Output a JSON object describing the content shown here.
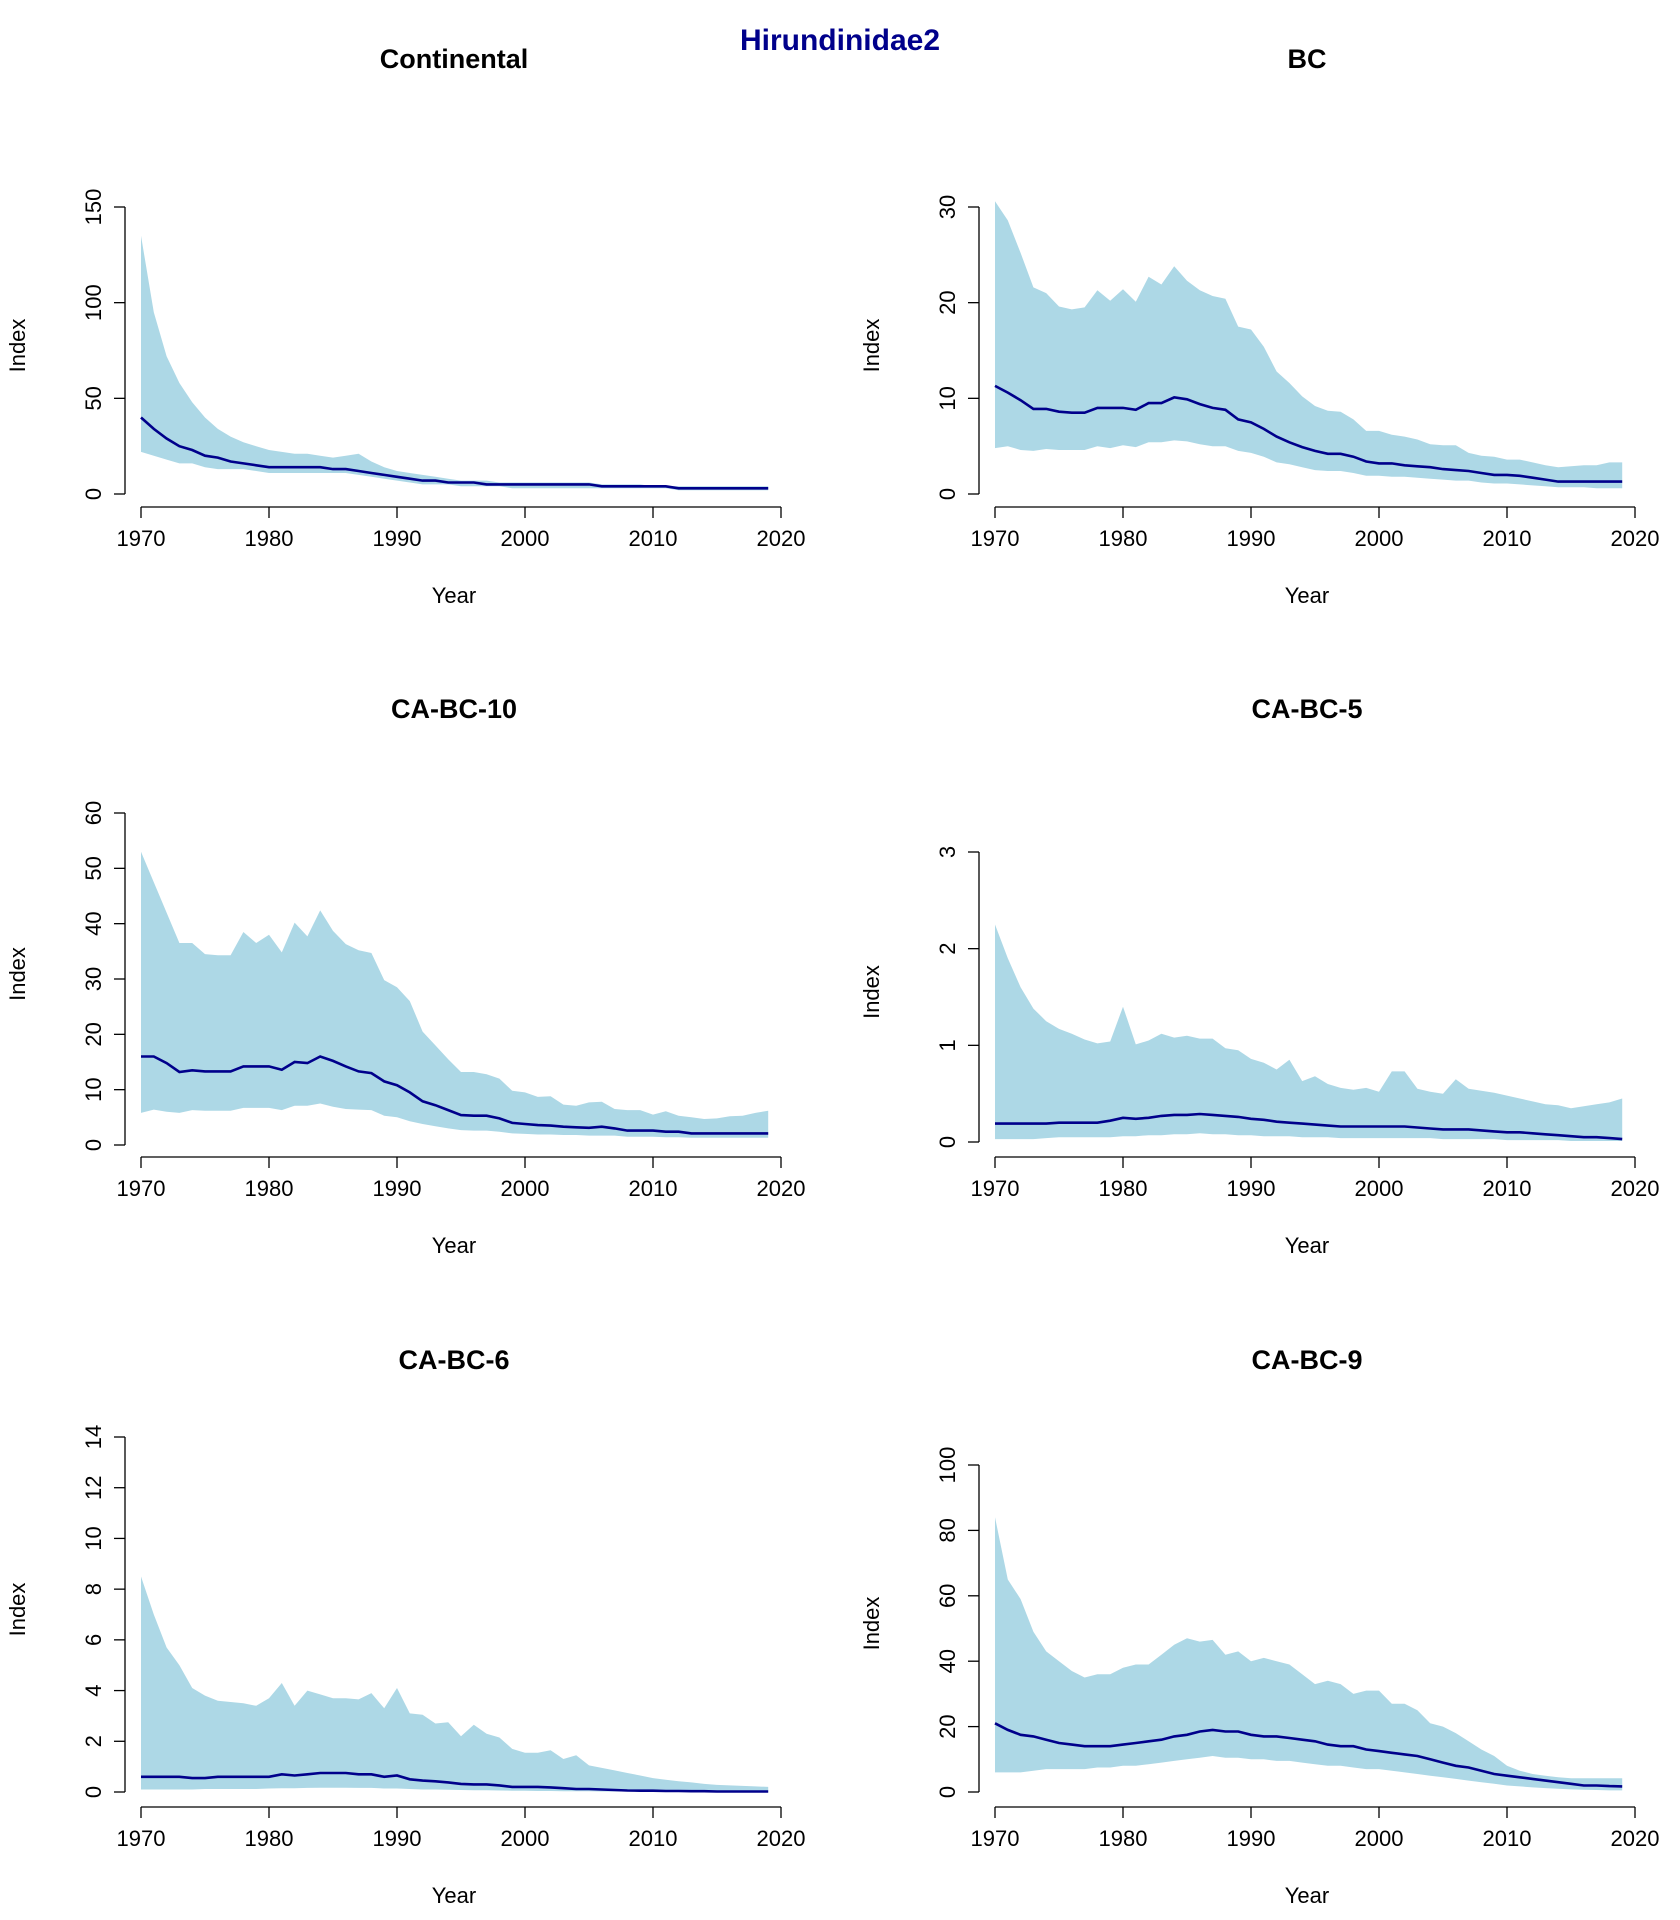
{
  "page_title": "Hirundinidae2",
  "colors": {
    "band": "#ADD8E6",
    "line": "#00008B",
    "title": "#00008B"
  },
  "chart_data": [
    {
      "type": "area",
      "title": "Continental",
      "xlabel": "Year",
      "ylabel": "Index",
      "xlim": [
        1970,
        2020
      ],
      "ylim": [
        0,
        150
      ],
      "xticks": [
        1970,
        1980,
        1990,
        2000,
        2010,
        2020
      ],
      "yticks": [
        0,
        50,
        100,
        150
      ],
      "x_start": 1970,
      "series": [
        {
          "role": "index",
          "values": [
            40,
            34,
            29,
            25,
            23,
            20,
            19,
            17,
            16,
            15,
            14,
            14,
            14,
            14,
            14,
            13,
            13,
            12,
            11,
            10,
            9,
            8,
            7,
            7,
            6,
            6,
            6,
            5,
            5,
            5,
            5,
            5,
            5,
            5,
            5,
            5,
            4,
            4,
            4,
            4,
            4,
            4,
            3,
            3,
            3,
            3,
            3,
            3,
            3,
            3
          ]
        },
        {
          "role": "lower",
          "values": [
            22,
            20,
            18,
            16,
            16,
            14,
            13,
            13,
            13,
            12,
            11,
            11,
            11,
            11,
            11,
            11,
            11,
            10,
            9,
            8,
            7,
            6,
            5,
            5,
            5,
            4,
            4,
            4,
            4,
            3,
            3,
            3,
            3,
            3,
            3,
            3,
            3,
            3,
            3,
            3,
            3,
            3,
            2,
            2,
            2,
            2,
            2,
            2,
            2,
            2
          ]
        },
        {
          "role": "upper",
          "values": [
            135,
            95,
            72,
            58,
            48,
            40,
            34,
            30,
            27,
            25,
            23,
            22,
            21,
            21,
            20,
            19,
            20,
            21,
            17,
            14,
            12,
            11,
            10,
            9,
            8,
            7,
            7,
            7,
            6,
            6,
            6,
            6,
            6,
            6,
            6,
            6,
            5,
            5,
            5,
            5,
            4,
            4,
            4,
            4,
            4,
            4,
            4,
            4,
            4,
            4
          ]
        }
      ]
    },
    {
      "type": "area",
      "title": "BC",
      "xlabel": "Year",
      "ylabel": "Index",
      "xlim": [
        1970,
        2020
      ],
      "ylim": [
        0,
        30
      ],
      "xticks": [
        1970,
        1980,
        1990,
        2000,
        2010,
        2020
      ],
      "yticks": [
        0,
        10,
        20,
        30
      ],
      "x_start": 1970,
      "series": [
        {
          "role": "index",
          "values": [
            11.3,
            10.6,
            9.8,
            8.9,
            8.9,
            8.6,
            8.5,
            8.5,
            9.0,
            9.0,
            9.0,
            8.8,
            9.5,
            9.5,
            10.1,
            9.9,
            9.4,
            9.0,
            8.8,
            7.8,
            7.5,
            6.8,
            6.0,
            5.4,
            4.9,
            4.5,
            4.2,
            4.2,
            3.9,
            3.4,
            3.2,
            3.2,
            3.0,
            2.9,
            2.8,
            2.6,
            2.5,
            2.4,
            2.2,
            2.0,
            2.0,
            1.9,
            1.7,
            1.5,
            1.3,
            1.3,
            1.3,
            1.3,
            1.3,
            1.3
          ]
        },
        {
          "role": "lower",
          "values": [
            4.8,
            5.0,
            4.6,
            4.5,
            4.7,
            4.6,
            4.6,
            4.6,
            5.0,
            4.8,
            5.1,
            4.9,
            5.4,
            5.4,
            5.6,
            5.5,
            5.2,
            5.0,
            5.0,
            4.5,
            4.3,
            3.9,
            3.3,
            3.1,
            2.8,
            2.5,
            2.4,
            2.4,
            2.2,
            1.9,
            1.9,
            1.8,
            1.8,
            1.7,
            1.6,
            1.5,
            1.4,
            1.4,
            1.2,
            1.1,
            1.1,
            1.0,
            0.9,
            0.8,
            0.7,
            0.7,
            0.7,
            0.6,
            0.6,
            0.6
          ]
        },
        {
          "role": "upper",
          "values": [
            30.6,
            28.6,
            25.2,
            21.6,
            21.0,
            19.6,
            19.3,
            19.5,
            21.3,
            20.2,
            21.4,
            20.1,
            22.7,
            21.9,
            23.8,
            22.3,
            21.3,
            20.7,
            20.4,
            17.5,
            17.2,
            15.4,
            12.8,
            11.6,
            10.2,
            9.2,
            8.7,
            8.6,
            7.8,
            6.6,
            6.6,
            6.2,
            6.0,
            5.7,
            5.2,
            5.1,
            5.1,
            4.3,
            4.0,
            3.9,
            3.6,
            3.6,
            3.3,
            3.0,
            2.8,
            2.9,
            3.0,
            3.0,
            3.3,
            3.3
          ]
        }
      ]
    },
    {
      "type": "area",
      "title": "CA-BC-10",
      "xlabel": "Year",
      "ylabel": "Index",
      "xlim": [
        1970,
        2020
      ],
      "ylim": [
        0,
        60
      ],
      "xticks": [
        1970,
        1980,
        1990,
        2000,
        2010,
        2020
      ],
      "yticks": [
        0,
        10,
        20,
        30,
        40,
        50,
        60
      ],
      "x_start": 1970,
      "series": [
        {
          "role": "index",
          "values": [
            16,
            16,
            14.8,
            13.2,
            13.5,
            13.3,
            13.3,
            13.3,
            14.2,
            14.2,
            14.2,
            13.6,
            15,
            14.8,
            16,
            15.2,
            14.2,
            13.3,
            13,
            11.5,
            10.8,
            9.5,
            7.9,
            7.2,
            6.3,
            5.4,
            5.3,
            5.3,
            4.8,
            4,
            3.8,
            3.6,
            3.5,
            3.3,
            3.2,
            3.1,
            3.3,
            3,
            2.6,
            2.6,
            2.6,
            2.4,
            2.4,
            2.1,
            2.1,
            2.1,
            2.1,
            2.1,
            2.1,
            2.1
          ]
        },
        {
          "role": "lower",
          "values": [
            5.8,
            6.4,
            6,
            5.8,
            6.3,
            6.2,
            6.2,
            6.2,
            6.7,
            6.7,
            6.7,
            6.3,
            7.1,
            7.1,
            7.5,
            6.9,
            6.5,
            6.4,
            6.3,
            5.3,
            5,
            4.3,
            3.8,
            3.4,
            3,
            2.7,
            2.6,
            2.6,
            2.4,
            2.1,
            2,
            1.9,
            1.9,
            1.8,
            1.8,
            1.7,
            1.7,
            1.7,
            1.5,
            1.5,
            1.5,
            1.4,
            1.4,
            1.3,
            1.3,
            1.3,
            1.3,
            1.3,
            1.3,
            1.3
          ]
        },
        {
          "role": "upper",
          "values": [
            53,
            47.5,
            42,
            36.5,
            36.5,
            34.5,
            34.3,
            34.3,
            38.5,
            36.5,
            38,
            34.8,
            40.2,
            37.7,
            42.4,
            38.7,
            36.3,
            35.2,
            34.7,
            29.8,
            28.5,
            26,
            20.5,
            18,
            15.5,
            13.2,
            13.2,
            12.8,
            12,
            9.8,
            9.5,
            8.7,
            8.8,
            7.3,
            7.1,
            7.7,
            7.8,
            6.5,
            6.3,
            6.3,
            5.5,
            6.1,
            5.3,
            5,
            4.7,
            4.8,
            5.2,
            5.3,
            5.8,
            6.2
          ]
        }
      ]
    },
    {
      "type": "area",
      "title": "CA-BC-5",
      "xlabel": "Year",
      "ylabel": "Index",
      "xlim": [
        1970,
        2020
      ],
      "ylim": [
        0,
        3
      ],
      "xticks": [
        1970,
        1980,
        1990,
        2000,
        2010,
        2020
      ],
      "yticks": [
        0,
        1,
        2,
        3
      ],
      "x_start": 1970,
      "series": [
        {
          "role": "index",
          "values": [
            0.19,
            0.19,
            0.19,
            0.19,
            0.19,
            0.2,
            0.2,
            0.2,
            0.2,
            0.22,
            0.25,
            0.24,
            0.25,
            0.27,
            0.28,
            0.28,
            0.29,
            0.28,
            0.27,
            0.26,
            0.24,
            0.23,
            0.21,
            0.2,
            0.19,
            0.18,
            0.17,
            0.16,
            0.16,
            0.16,
            0.16,
            0.16,
            0.16,
            0.15,
            0.14,
            0.13,
            0.13,
            0.13,
            0.12,
            0.11,
            0.1,
            0.1,
            0.09,
            0.08,
            0.07,
            0.06,
            0.05,
            0.05,
            0.04,
            0.03
          ]
        },
        {
          "role": "lower",
          "values": [
            0.03,
            0.03,
            0.03,
            0.03,
            0.04,
            0.05,
            0.05,
            0.05,
            0.05,
            0.05,
            0.06,
            0.06,
            0.07,
            0.07,
            0.08,
            0.08,
            0.09,
            0.08,
            0.08,
            0.07,
            0.07,
            0.06,
            0.06,
            0.06,
            0.05,
            0.05,
            0.05,
            0.04,
            0.04,
            0.04,
            0.04,
            0.04,
            0.04,
            0.04,
            0.04,
            0.03,
            0.03,
            0.03,
            0.03,
            0.03,
            0.02,
            0.02,
            0.02,
            0.02,
            0.02,
            0.01,
            0.01,
            0.01,
            0.01,
            0.01
          ]
        },
        {
          "role": "upper",
          "values": [
            2.25,
            1.9,
            1.6,
            1.38,
            1.25,
            1.17,
            1.12,
            1.06,
            1.02,
            1.04,
            1.4,
            1.01,
            1.05,
            1.12,
            1.08,
            1.1,
            1.07,
            1.07,
            0.97,
            0.95,
            0.86,
            0.82,
            0.75,
            0.85,
            0.63,
            0.68,
            0.6,
            0.56,
            0.54,
            0.56,
            0.52,
            0.73,
            0.73,
            0.55,
            0.52,
            0.5,
            0.65,
            0.55,
            0.53,
            0.51,
            0.48,
            0.45,
            0.42,
            0.39,
            0.38,
            0.35,
            0.37,
            0.39,
            0.41,
            0.45
          ]
        }
      ]
    },
    {
      "type": "area",
      "title": "CA-BC-6",
      "xlabel": "Year",
      "ylabel": "Index",
      "xlim": [
        1970,
        2020
      ],
      "ylim": [
        0,
        14
      ],
      "xticks": [
        1970,
        1980,
        1990,
        2000,
        2010,
        2020
      ],
      "yticks": [
        0,
        2,
        4,
        6,
        8,
        10,
        12,
        14
      ],
      "x_start": 1970,
      "series": [
        {
          "role": "index",
          "values": [
            0.6,
            0.6,
            0.6,
            0.6,
            0.55,
            0.55,
            0.6,
            0.6,
            0.6,
            0.6,
            0.6,
            0.7,
            0.65,
            0.7,
            0.75,
            0.75,
            0.75,
            0.7,
            0.7,
            0.6,
            0.65,
            0.5,
            0.45,
            0.42,
            0.38,
            0.32,
            0.3,
            0.3,
            0.26,
            0.2,
            0.2,
            0.2,
            0.18,
            0.15,
            0.12,
            0.12,
            0.1,
            0.08,
            0.06,
            0.05,
            0.05,
            0.04,
            0.04,
            0.03,
            0.03,
            0.02,
            0.02,
            0.02,
            0.02,
            0.02
          ]
        },
        {
          "role": "lower",
          "values": [
            0.1,
            0.1,
            0.1,
            0.1,
            0.1,
            0.12,
            0.12,
            0.12,
            0.12,
            0.12,
            0.14,
            0.15,
            0.15,
            0.16,
            0.17,
            0.17,
            0.17,
            0.16,
            0.16,
            0.14,
            0.14,
            0.12,
            0.1,
            0.1,
            0.09,
            0.08,
            0.07,
            0.07,
            0.06,
            0.05,
            0.05,
            0.04,
            0.04,
            0.03,
            0.03,
            0.03,
            0.02,
            0.02,
            0.02,
            0.01,
            0.01,
            0.01,
            0.01,
            0.01,
            0,
            0,
            0,
            0,
            0,
            0
          ]
        },
        {
          "role": "upper",
          "values": [
            8.5,
            7,
            5.7,
            5,
            4.1,
            3.8,
            3.6,
            3.55,
            3.5,
            3.4,
            3.7,
            4.3,
            3.4,
            4,
            3.85,
            3.7,
            3.7,
            3.65,
            3.9,
            3.3,
            4.1,
            3.1,
            3.05,
            2.7,
            2.75,
            2.2,
            2.65,
            2.3,
            2.15,
            1.7,
            1.55,
            1.55,
            1.65,
            1.3,
            1.45,
            1.05,
            0.95,
            0.85,
            0.75,
            0.65,
            0.55,
            0.48,
            0.42,
            0.38,
            0.32,
            0.28,
            0.26,
            0.24,
            0.22,
            0.2
          ]
        }
      ]
    },
    {
      "type": "area",
      "title": "CA-BC-9",
      "xlabel": "Year",
      "ylabel": "Index",
      "xlim": [
        1970,
        2020
      ],
      "ylim": [
        0,
        100
      ],
      "xticks": [
        1970,
        1980,
        1990,
        2000,
        2010,
        2020
      ],
      "yticks": [
        0,
        20,
        40,
        60,
        80,
        100
      ],
      "x_start": 1970,
      "series": [
        {
          "role": "index",
          "values": [
            21,
            19,
            17.5,
            17,
            16,
            15,
            14.5,
            14,
            14,
            14,
            14.5,
            15,
            15.5,
            16,
            17,
            17.5,
            18.5,
            19,
            18.5,
            18.5,
            17.5,
            17,
            17,
            16.5,
            16,
            15.5,
            14.5,
            14,
            14,
            13,
            12.5,
            12,
            11.5,
            11,
            10,
            9,
            8,
            7.5,
            6.5,
            5.5,
            5,
            4.5,
            4,
            3.5,
            3,
            2.5,
            2,
            2,
            1.8,
            1.7
          ]
        },
        {
          "role": "lower",
          "values": [
            6,
            6,
            6,
            6.5,
            7,
            7,
            7,
            7,
            7.5,
            7.5,
            8,
            8,
            8.5,
            9,
            9.5,
            10,
            10.5,
            11,
            10.5,
            10.5,
            10,
            10,
            9.5,
            9.5,
            9,
            8.5,
            8,
            8,
            7.5,
            7,
            7,
            6.5,
            6,
            5.5,
            5,
            4.5,
            4,
            3.5,
            3,
            2.5,
            2,
            1.7,
            1.4,
            1.2,
            1,
            0.8,
            0.7,
            0.6,
            0.5,
            0.5
          ]
        },
        {
          "role": "upper",
          "values": [
            84,
            65,
            59,
            49,
            43,
            40,
            37,
            35,
            36,
            36,
            38,
            39,
            39,
            42,
            45,
            47,
            46,
            46.5,
            42,
            43,
            40,
            41,
            40,
            39,
            36,
            33,
            34,
            33,
            30,
            31,
            31,
            27,
            27,
            25,
            21,
            20,
            18,
            15.5,
            13,
            11,
            8,
            6.5,
            5.5,
            5,
            4.5,
            4.2,
            4.2,
            4.2,
            4.2,
            4.2
          ]
        }
      ]
    }
  ]
}
